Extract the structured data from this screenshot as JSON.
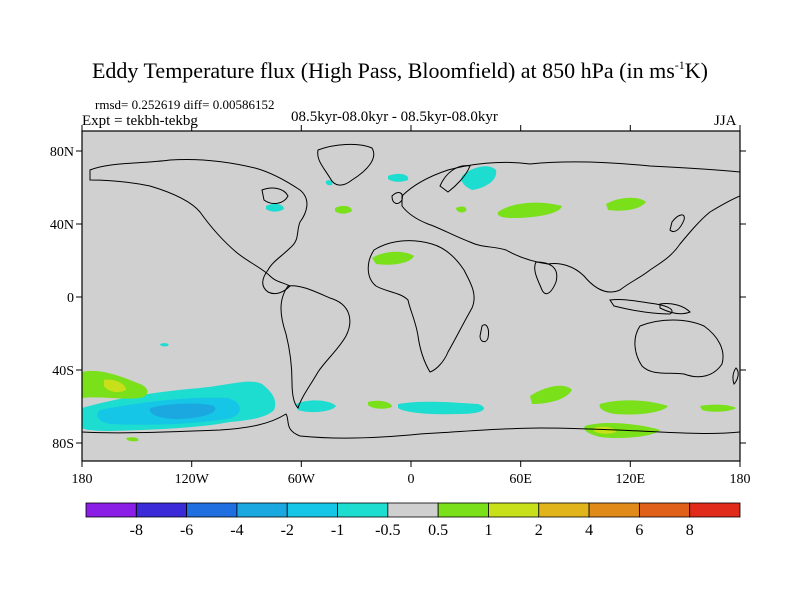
{
  "title": {
    "main": "Eddy Temperature flux (High Pass, Bloomfield) at 850 hPa (in ms",
    "sup": "-1",
    "end": "K)"
  },
  "stats": {
    "rmsd_diff": "rmsd= 0.252619 diff= 0.00586152"
  },
  "experiment": "Expt = tekbh-tekbg",
  "period": "08.5kyr-08.0kyr - 08.5kyr-08.0kyr",
  "season": "JJA",
  "axes": {
    "lon_labels": [
      "180",
      "120W",
      "60W",
      "0",
      "60E",
      "120E",
      "180"
    ],
    "lat_labels": [
      "80N",
      "40N",
      "0",
      "40S",
      "80S"
    ]
  },
  "colorbar": {
    "labels": [
      "-8",
      "-6",
      "-4",
      "-2",
      "-1",
      "-0.5",
      "0.5",
      "1",
      "2",
      "4",
      "6",
      "8"
    ],
    "colors": [
      "#8a1ee6",
      "#3a2ad8",
      "#1f6fe0",
      "#1ba8e0",
      "#16c6e6",
      "#1ddcd0",
      "#cfcfcf",
      "#7ae01a",
      "#c8e01a",
      "#e0b41a",
      "#e08a1a",
      "#e0601a",
      "#e02a1a"
    ]
  }
}
